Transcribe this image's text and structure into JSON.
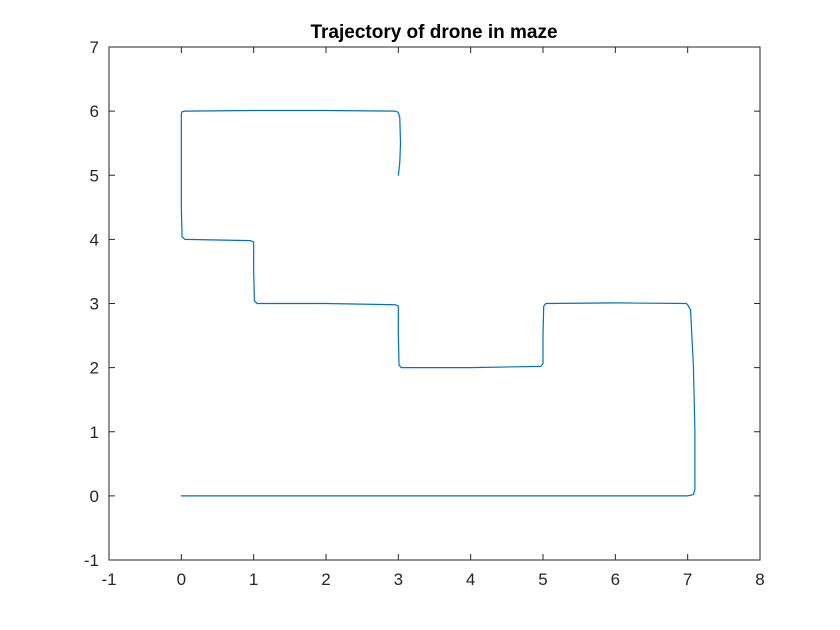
{
  "chart_data": {
    "type": "line",
    "title": "Trajectory of drone in maze",
    "xlabel": "",
    "ylabel": "",
    "xlim": [
      -1,
      8
    ],
    "ylim": [
      -1,
      7
    ],
    "xticks": [
      -1,
      0,
      1,
      2,
      3,
      4,
      5,
      6,
      7,
      8
    ],
    "yticks": [
      -1,
      0,
      1,
      2,
      3,
      4,
      5,
      6,
      7
    ],
    "xtick_labels": [
      "-1",
      "0",
      "1",
      "2",
      "3",
      "4",
      "5",
      "6",
      "7",
      "8"
    ],
    "ytick_labels": [
      "-1",
      "0",
      "1",
      "2",
      "3",
      "4",
      "5",
      "6",
      "7"
    ],
    "grid": false,
    "series": [
      {
        "color": "#0072BD",
        "x": [
          0.0,
          1.0,
          2.0,
          3.0,
          4.0,
          5.0,
          6.0,
          7.0,
          7.08,
          7.1,
          7.1,
          7.08,
          7.04,
          7.0,
          6.98,
          6.0,
          5.04,
          5.01,
          5.0,
          5.0,
          4.97,
          4.0,
          3.04,
          3.01,
          3.0,
          3.0,
          2.96,
          2.0,
          1.05,
          1.01,
          1.0,
          1.0,
          0.96,
          0.05,
          0.01,
          0.0,
          0.0,
          0.01,
          0.05,
          1.0,
          2.0,
          2.96,
          3.0,
          3.02,
          3.03,
          3.02,
          3.0
        ],
        "y": [
          0.0,
          0.0,
          0.0,
          0.0,
          0.0,
          0.0,
          0.0,
          0.0,
          0.02,
          0.1,
          1.0,
          2.0,
          2.9,
          2.98,
          3.0,
          3.01,
          3.0,
          2.96,
          2.5,
          2.06,
          2.02,
          2.0,
          2.0,
          2.04,
          2.5,
          2.96,
          2.98,
          3.0,
          3.0,
          3.04,
          3.5,
          3.96,
          3.98,
          4.0,
          4.04,
          4.5,
          5.96,
          5.99,
          6.0,
          6.01,
          6.01,
          6.0,
          5.98,
          5.9,
          5.5,
          5.2,
          5.0
        ]
      }
    ]
  }
}
